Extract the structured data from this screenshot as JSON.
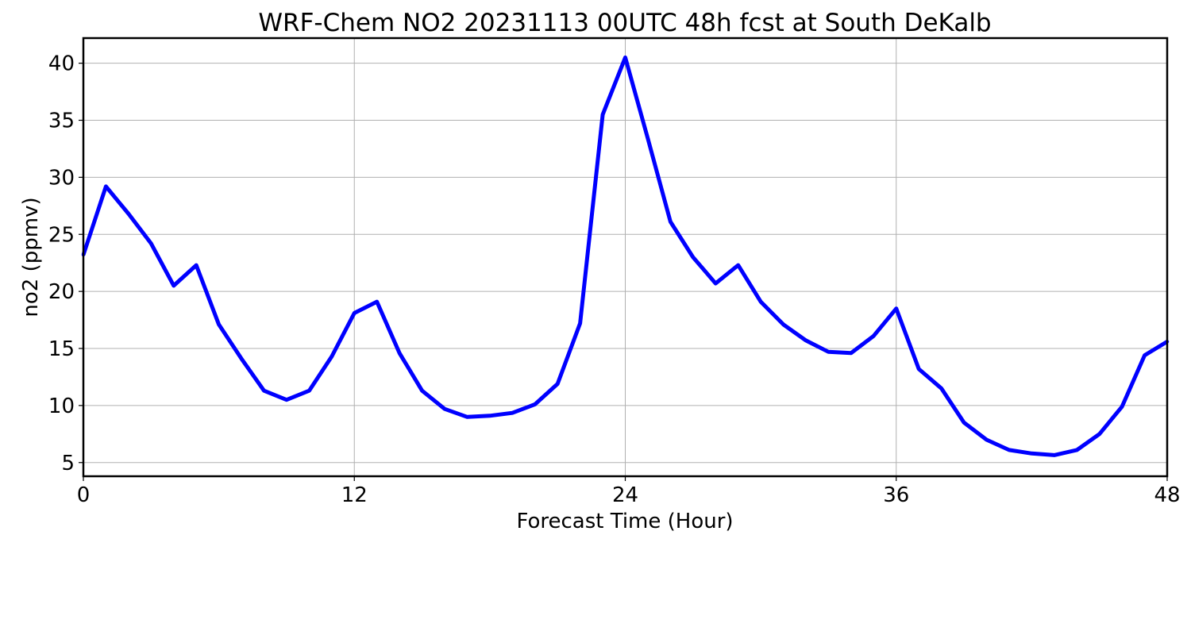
{
  "chart_data": {
    "type": "line",
    "title": "WRF-Chem NO2  20231113 00UTC 48h fcst at South DeKalb",
    "xlabel": "Forecast Time (Hour)",
    "ylabel": "no2  (ppmv)",
    "xlim": [
      0,
      48
    ],
    "ylim": [
      3.8,
      42.2
    ],
    "xticks": [
      0,
      12,
      24,
      36,
      48
    ],
    "yticks": [
      5,
      10,
      15,
      20,
      25,
      30,
      35,
      40
    ],
    "grid": true,
    "legend": "none",
    "series": [
      {
        "color": "#0000ff",
        "x": [
          0,
          1,
          2,
          3,
          4,
          5,
          6,
          7,
          8,
          9,
          10,
          11,
          12,
          13,
          14,
          15,
          16,
          17,
          18,
          19,
          20,
          21,
          22,
          23,
          24,
          25,
          26,
          27,
          28,
          29,
          30,
          31,
          32,
          33,
          34,
          35,
          36,
          37,
          38,
          39,
          40,
          41,
          42,
          43,
          44,
          45,
          46,
          47,
          48
        ],
        "values": [
          23.2,
          29.2,
          26.8,
          24.2,
          20.5,
          22.3,
          17.1,
          14.1,
          11.3,
          10.5,
          11.3,
          14.3,
          18.1,
          19.1,
          14.6,
          11.3,
          9.7,
          9.0,
          9.1,
          9.35,
          10.1,
          11.9,
          17.2,
          35.5,
          40.5,
          33.4,
          26.1,
          23.0,
          20.7,
          22.3,
          19.1,
          17.1,
          15.7,
          14.7,
          14.6,
          16.1,
          18.5,
          13.2,
          11.5,
          8.5,
          7.0,
          6.1,
          5.8,
          5.65,
          6.1,
          7.5,
          9.9,
          14.4,
          15.6
        ]
      }
    ]
  }
}
